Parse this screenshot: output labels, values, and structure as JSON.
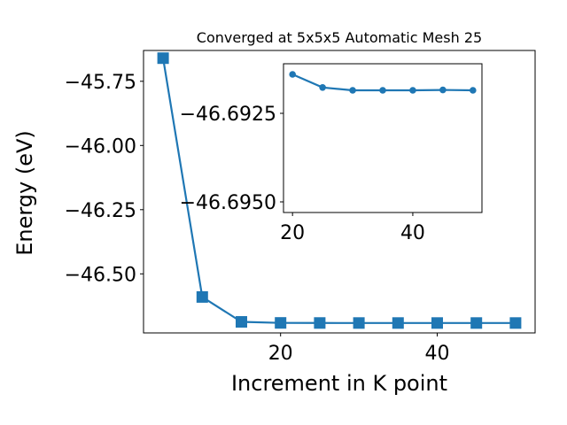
{
  "chart_data": [
    {
      "type": "line",
      "title": "Converged at 5x5x5 Automatic Mesh 25",
      "xlabel": "Increment in K point",
      "ylabel": "Energy (eV)",
      "xlim": [
        2.5,
        52.5
      ],
      "ylim": [
        -46.73,
        -45.63
      ],
      "xticks": [
        20,
        40
      ],
      "yticks": [
        -46.5,
        -46.25,
        -46.0,
        -45.75
      ],
      "xtick_labels": [
        "20",
        "40"
      ],
      "ytick_labels": [
        "−46.50",
        "−46.25",
        "−46.00",
        "−45.75"
      ],
      "marker": "square",
      "color": "#1f77b4",
      "grid": false,
      "series": [
        {
          "x": [
            5,
            10,
            15,
            20,
            25,
            30,
            35,
            40,
            45,
            50
          ],
          "y": [
            -45.66,
            -46.59,
            -46.687,
            -46.691,
            -46.6913,
            -46.6914,
            -46.6914,
            -46.6914,
            -46.6914,
            -46.6914
          ]
        }
      ]
    },
    {
      "type": "line",
      "title": "",
      "xlabel": "",
      "ylabel": "",
      "xlim": [
        18.5,
        51.5
      ],
      "ylim": [
        -46.6953,
        -46.6911
      ],
      "xticks": [
        20,
        40
      ],
      "yticks": [
        -46.695,
        -46.6925
      ],
      "xtick_labels": [
        "20",
        "40"
      ],
      "ytick_labels": [
        "−46.6950",
        "−46.6925"
      ],
      "marker": "circle",
      "color": "#1f77b4",
      "grid": false,
      "series": [
        {
          "x": [
            20,
            25,
            30,
            35,
            40,
            45,
            50
          ],
          "y": [
            -46.6914,
            -46.69177,
            -46.69185,
            -46.69185,
            -46.69185,
            -46.69184,
            -46.69185
          ]
        }
      ]
    }
  ]
}
